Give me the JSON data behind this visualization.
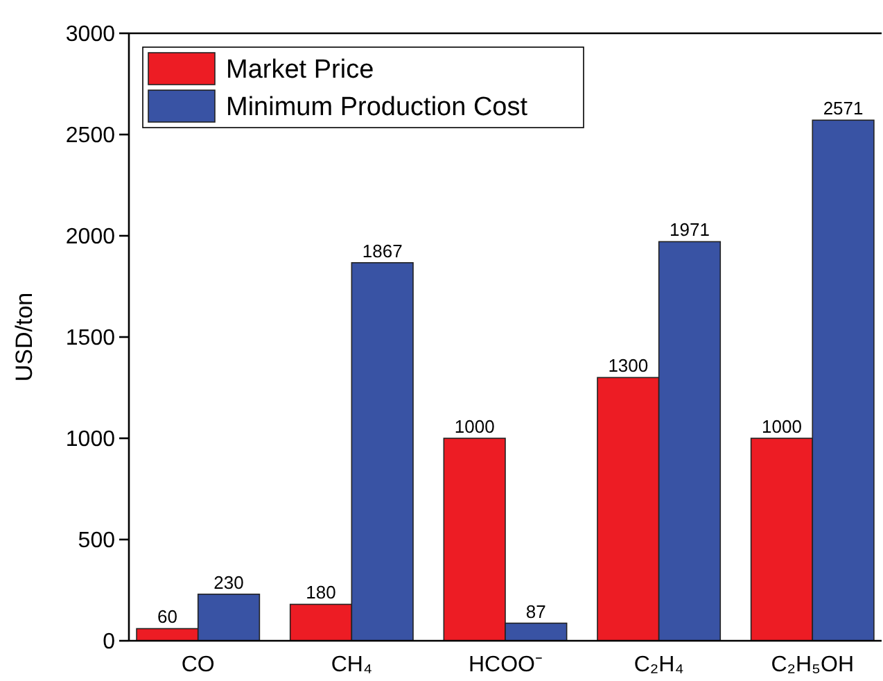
{
  "chart_data": {
    "type": "bar",
    "ylabel": "USD/ton",
    "categories": [
      "CO",
      "CH₄",
      "HCOO⁻",
      "C₂H₄",
      "C₂H₅OH"
    ],
    "series": [
      {
        "name": "Market Price",
        "color": "#ed1c24",
        "values": [
          60,
          180,
          1000,
          1300,
          1000
        ]
      },
      {
        "name": "Minimum Production Cost",
        "color": "#3953a4",
        "values": [
          230,
          1867,
          87,
          1971,
          2571
        ]
      }
    ],
    "ylim": [
      0,
      3000
    ],
    "yticks": [
      0,
      500,
      1000,
      1500,
      2000,
      2500,
      3000
    ],
    "data_labels": true,
    "legend": "top left",
    "grid": false
  }
}
